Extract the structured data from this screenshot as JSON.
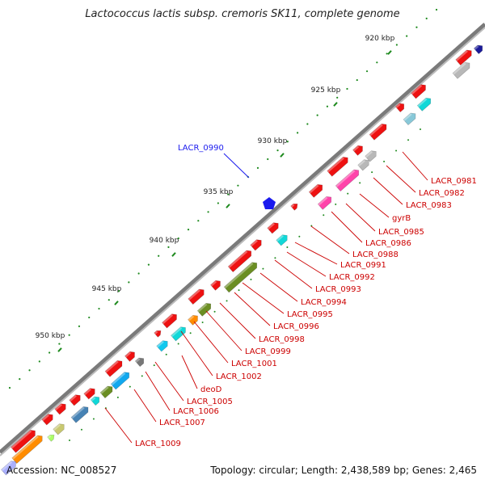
{
  "title": "Lactococcus lactis subsp. cremoris SK11, complete genome",
  "footer": {
    "accession": "Accession: NC_008527",
    "summary": "Topology: circular; Length: 2,438,589 bp; Genes: 2,465"
  },
  "ticks": [
    {
      "label": "920 kbp",
      "kbp": 920
    },
    {
      "label": "925 kbp",
      "kbp": 925
    },
    {
      "label": "930 kbp",
      "kbp": 930
    },
    {
      "label": "935 kbp",
      "kbp": 935
    },
    {
      "label": "940 kbp",
      "kbp": 940
    },
    {
      "label": "945 kbp",
      "kbp": 945
    },
    {
      "label": "950 kbp",
      "kbp": 950
    }
  ],
  "highlight_label": "LACR_0990",
  "gene_labels": [
    "LACR_0981",
    "LACR_0982",
    "LACR_0983",
    "gyrB",
    "LACR_0985",
    "LACR_0986",
    "LACR_0988",
    "LACR_0991",
    "LACR_0992",
    "LACR_0993",
    "LACR_0994",
    "LACR_0995",
    "LACR_0996",
    "LACR_0998",
    "LACR_0999",
    "LACR_1001",
    "LACR_1002",
    "deoD",
    "LACR_1005",
    "LACR_1006",
    "LACR_1007",
    "LACR_1009"
  ],
  "colors": {
    "backbone": "#7a7a7a",
    "forward_gene": "#ee1111",
    "highlight": "#1a1aee",
    "label_red": "#cc0000",
    "tick_green": "#1e8a1e"
  }
}
